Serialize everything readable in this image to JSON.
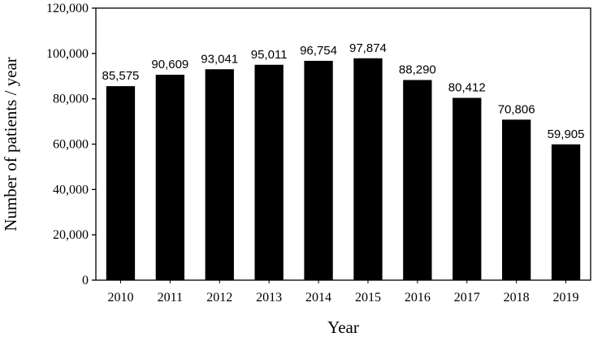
{
  "chart_data": {
    "type": "bar",
    "title": "",
    "xlabel": "Year",
    "ylabel": "Number of patients / year",
    "categories": [
      "2010",
      "2011",
      "2012",
      "2013",
      "2014",
      "2015",
      "2016",
      "2017",
      "2018",
      "2019"
    ],
    "values": [
      85575,
      90609,
      93041,
      95011,
      96754,
      97874,
      88290,
      80412,
      70806,
      59905
    ],
    "data_labels": [
      "85,575",
      "90,609",
      "93,041",
      "95,011",
      "96,754",
      "97,874",
      "88,290",
      "80,412",
      "70,806",
      "59,905"
    ],
    "ylim": [
      0,
      120000
    ],
    "yticks": [
      0,
      20000,
      40000,
      60000,
      80000,
      100000,
      120000
    ],
    "ytick_labels": [
      "0",
      "20,000",
      "40,000",
      "60,000",
      "80,000",
      "100,000",
      "120,000"
    ],
    "bar_color": "#000000",
    "grid": false,
    "legend": "none"
  }
}
